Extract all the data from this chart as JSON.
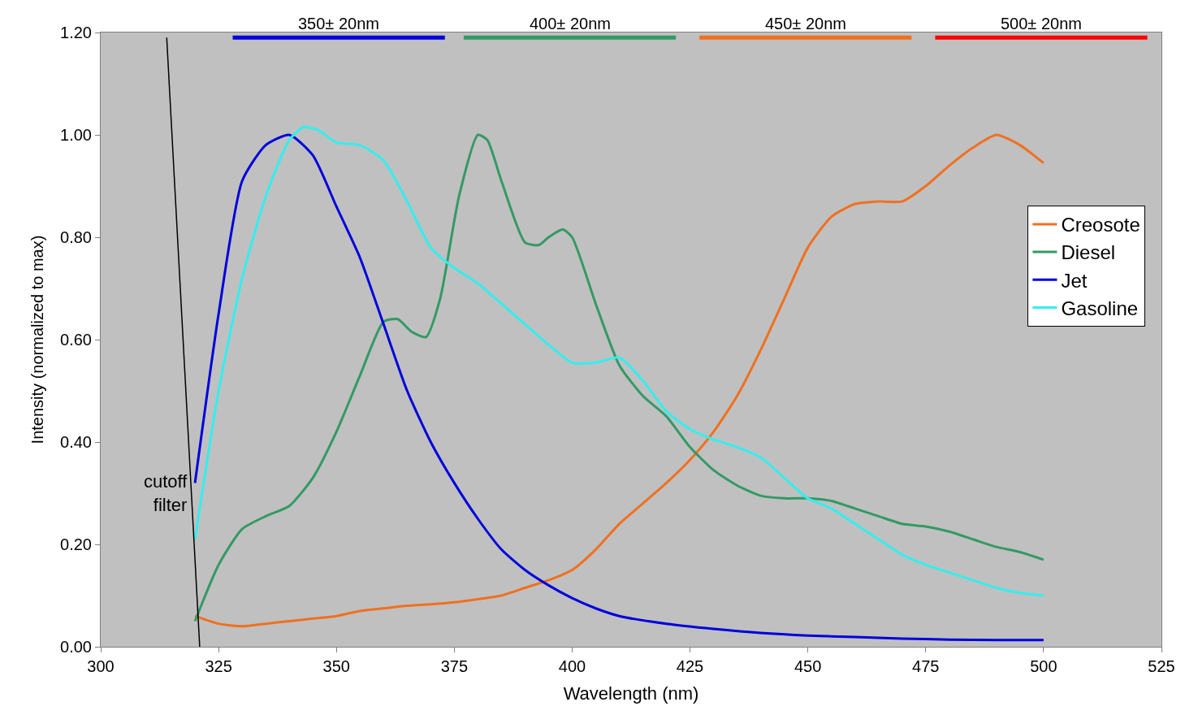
{
  "chart_data": {
    "type": "line",
    "xlabel": "Wavelength (nm)",
    "ylabel": "Intensity (normalized to max)",
    "xlim": [
      300,
      525
    ],
    "xticks": [
      300,
      325,
      350,
      375,
      400,
      425,
      450,
      475,
      500,
      525
    ],
    "ylim": [
      0,
      1.2
    ],
    "yticks": [
      {
        "value": 0,
        "label": "0.00"
      },
      {
        "value": 0.2,
        "label": "0.20"
      },
      {
        "value": 0.4,
        "label": "0.40"
      },
      {
        "value": 0.6,
        "label": "0.60"
      },
      {
        "value": 0.8,
        "label": "0.80"
      },
      {
        "value": 1.0,
        "label": "1.00"
      },
      {
        "value": 1.2,
        "label": "1.20"
      }
    ],
    "grid": false,
    "legend": "right",
    "marker": "none",
    "line_style": "solid",
    "series": [
      {
        "name": "Creosote",
        "color": "#f07020",
        "x": [
          320,
          325,
          330,
          335,
          340,
          345,
          350,
          355,
          360,
          365,
          370,
          375,
          380,
          385,
          390,
          395,
          400,
          405,
          410,
          415,
          420,
          425,
          430,
          435,
          440,
          445,
          450,
          455,
          460,
          465,
          470,
          475,
          480,
          485,
          490,
          495,
          500
        ],
        "values": [
          0.06,
          0.045,
          0.04,
          0.045,
          0.05,
          0.055,
          0.06,
          0.07,
          0.075,
          0.08,
          0.083,
          0.087,
          0.093,
          0.1,
          0.115,
          0.13,
          0.15,
          0.19,
          0.24,
          0.28,
          0.32,
          0.365,
          0.42,
          0.49,
          0.58,
          0.68,
          0.78,
          0.84,
          0.865,
          0.87,
          0.87,
          0.9,
          0.94,
          0.975,
          1.0,
          0.98,
          0.945
        ]
      },
      {
        "name": "Diesel",
        "color": "#339966",
        "x": [
          320,
          325,
          330,
          335,
          340,
          345,
          350,
          355,
          360,
          363,
          366,
          369,
          372,
          376,
          380,
          382,
          385,
          390,
          393,
          395,
          398,
          400,
          405,
          410,
          415,
          420,
          425,
          430,
          435,
          440,
          445,
          450,
          455,
          460,
          465,
          470,
          475,
          480,
          485,
          490,
          495,
          500
        ],
        "values": [
          0.05,
          0.16,
          0.23,
          0.255,
          0.275,
          0.33,
          0.42,
          0.53,
          0.635,
          0.64,
          0.615,
          0.605,
          0.68,
          0.88,
          1.0,
          0.99,
          0.91,
          0.79,
          0.785,
          0.8,
          0.815,
          0.8,
          0.67,
          0.55,
          0.49,
          0.45,
          0.39,
          0.345,
          0.315,
          0.295,
          0.29,
          0.29,
          0.285,
          0.27,
          0.255,
          0.24,
          0.235,
          0.225,
          0.21,
          0.195,
          0.185,
          0.17
        ]
      },
      {
        "name": "Jet",
        "color": "#0000dd",
        "x": [
          320,
          325,
          330,
          335,
          340,
          345,
          350,
          355,
          360,
          365,
          370,
          375,
          380,
          385,
          390,
          395,
          400,
          405,
          410,
          420,
          430,
          440,
          450,
          460,
          470,
          480,
          490,
          500
        ],
        "values": [
          0.32,
          0.65,
          0.91,
          0.98,
          1.0,
          0.96,
          0.86,
          0.76,
          0.63,
          0.5,
          0.4,
          0.32,
          0.25,
          0.19,
          0.15,
          0.12,
          0.095,
          0.075,
          0.06,
          0.045,
          0.035,
          0.027,
          0.022,
          0.019,
          0.016,
          0.014,
          0.013,
          0.013
        ]
      },
      {
        "name": "Gasoline",
        "color": "#33eeee",
        "x": [
          320,
          325,
          330,
          335,
          340,
          343,
          346,
          350,
          355,
          360,
          365,
          370,
          375,
          380,
          385,
          390,
          395,
          400,
          405,
          410,
          415,
          420,
          425,
          430,
          435,
          440,
          445,
          450,
          455,
          460,
          465,
          470,
          475,
          480,
          485,
          490,
          495,
          500
        ],
        "values": [
          0.21,
          0.5,
          0.72,
          0.88,
          0.99,
          1.015,
          1.01,
          0.985,
          0.98,
          0.95,
          0.87,
          0.78,
          0.74,
          0.71,
          0.67,
          0.63,
          0.59,
          0.555,
          0.555,
          0.565,
          0.52,
          0.46,
          0.425,
          0.405,
          0.39,
          0.37,
          0.33,
          0.29,
          0.27,
          0.24,
          0.21,
          0.18,
          0.16,
          0.145,
          0.13,
          0.115,
          0.105,
          0.1
        ]
      },
      {
        "color": "#000000",
        "x": [
          314,
          321
        ],
        "values": [
          1.19,
          0.0
        ]
      },
      {
        "color": "#0000dd",
        "x": [
          328,
          373
        ],
        "values": [
          1.19,
          1.19
        ]
      },
      {
        "color": "#339966",
        "x": [
          377,
          422
        ],
        "values": [
          1.19,
          1.19
        ]
      },
      {
        "color": "#f07020",
        "x": [
          427,
          472
        ],
        "values": [
          1.19,
          1.19
        ]
      },
      {
        "color": "#ff0000",
        "x": [
          477,
          522
        ],
        "values": [
          1.19,
          1.19
        ]
      }
    ],
    "annotations": [
      {
        "text": "cutoff\nfilter",
        "x": 319.2,
        "y": 0.3
      },
      {
        "text": "350± 20nm",
        "x": 350.5,
        "y": 1.19
      },
      {
        "text": "400± 20nm",
        "x": 399.5,
        "y": 1.19
      },
      {
        "text": "450± 20nm",
        "x": 449.5,
        "y": 1.19
      },
      {
        "text": "500± 20nm",
        "x": 499.5,
        "y": 1.19
      }
    ]
  }
}
